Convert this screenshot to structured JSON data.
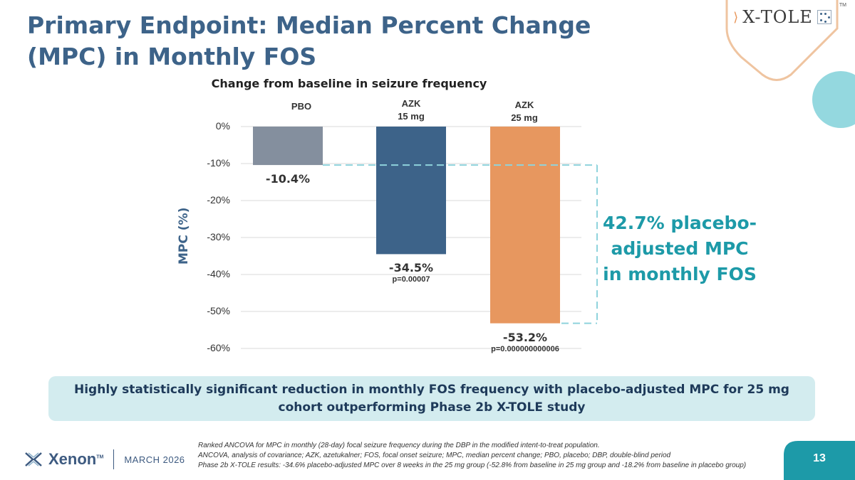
{
  "slide": {
    "title": "Primary Endpoint: Median Percent Change (MPC) in Monthly FOS",
    "logo_text": "X-TOLE",
    "logo_tm": "TM",
    "callout": "42.7% placebo-adjusted MPC in monthly FOS",
    "banner": "Highly statistically significant reduction in monthly FOS frequency with placebo-adjusted MPC for 25 mg cohort outperforming Phase 2b X-TOLE study",
    "footnotes": [
      "Ranked ANCOVA for MPC in monthly (28-day) focal seizure frequency during the DBP in the modified intent-to-treat population.",
      "ANCOVA, analysis of covariance; AZK, azetukalner; FOS, focal onset seizure; MPC, median percent change; PBO, placebo; DBP, double-blind period",
      "Phase 2b X-TOLE results: -34.6% placebo-adjusted MPC over 8 weeks in the 25 mg group (-52.8% from baseline in 25 mg group and -18.2% from baseline in placebo group)"
    ],
    "company": "Xenon",
    "company_tm": "TM",
    "date": "MARCH 2026",
    "page_number": "13"
  },
  "colors": {
    "title": "#3d6389",
    "pbo": "#848f9e",
    "azk15": "#3d6389",
    "azk25": "#e7975f",
    "accent": "#1d9aa8",
    "banner_bg": "#d3ecef",
    "dashed": "#8fd3dc"
  },
  "chart_data": {
    "type": "bar",
    "title": "Change from baseline in seizure frequency",
    "ylabel": "MPC (%)",
    "xlabel": "",
    "ylim": [
      -60,
      0
    ],
    "yticks": [
      0,
      -10,
      -20,
      -30,
      -40,
      -50,
      -60
    ],
    "ytick_labels": [
      "0%",
      "-10%",
      "-20%",
      "-30%",
      "-40%",
      "-50%",
      "-60%"
    ],
    "categories": [
      {
        "line1": "PBO",
        "line2": ""
      },
      {
        "line1": "AZK",
        "line2": "15 mg"
      },
      {
        "line1": "AZK",
        "line2": "25 mg"
      }
    ],
    "values": [
      -10.4,
      -34.5,
      -53.2
    ],
    "value_labels": [
      "-10.4%",
      "-34.5%",
      "-53.2%"
    ],
    "p_values": [
      "",
      "p=0.00007",
      "p=0.000000000006"
    ],
    "annotation": {
      "from_value": -10.4,
      "to_value": -53.2
    }
  }
}
